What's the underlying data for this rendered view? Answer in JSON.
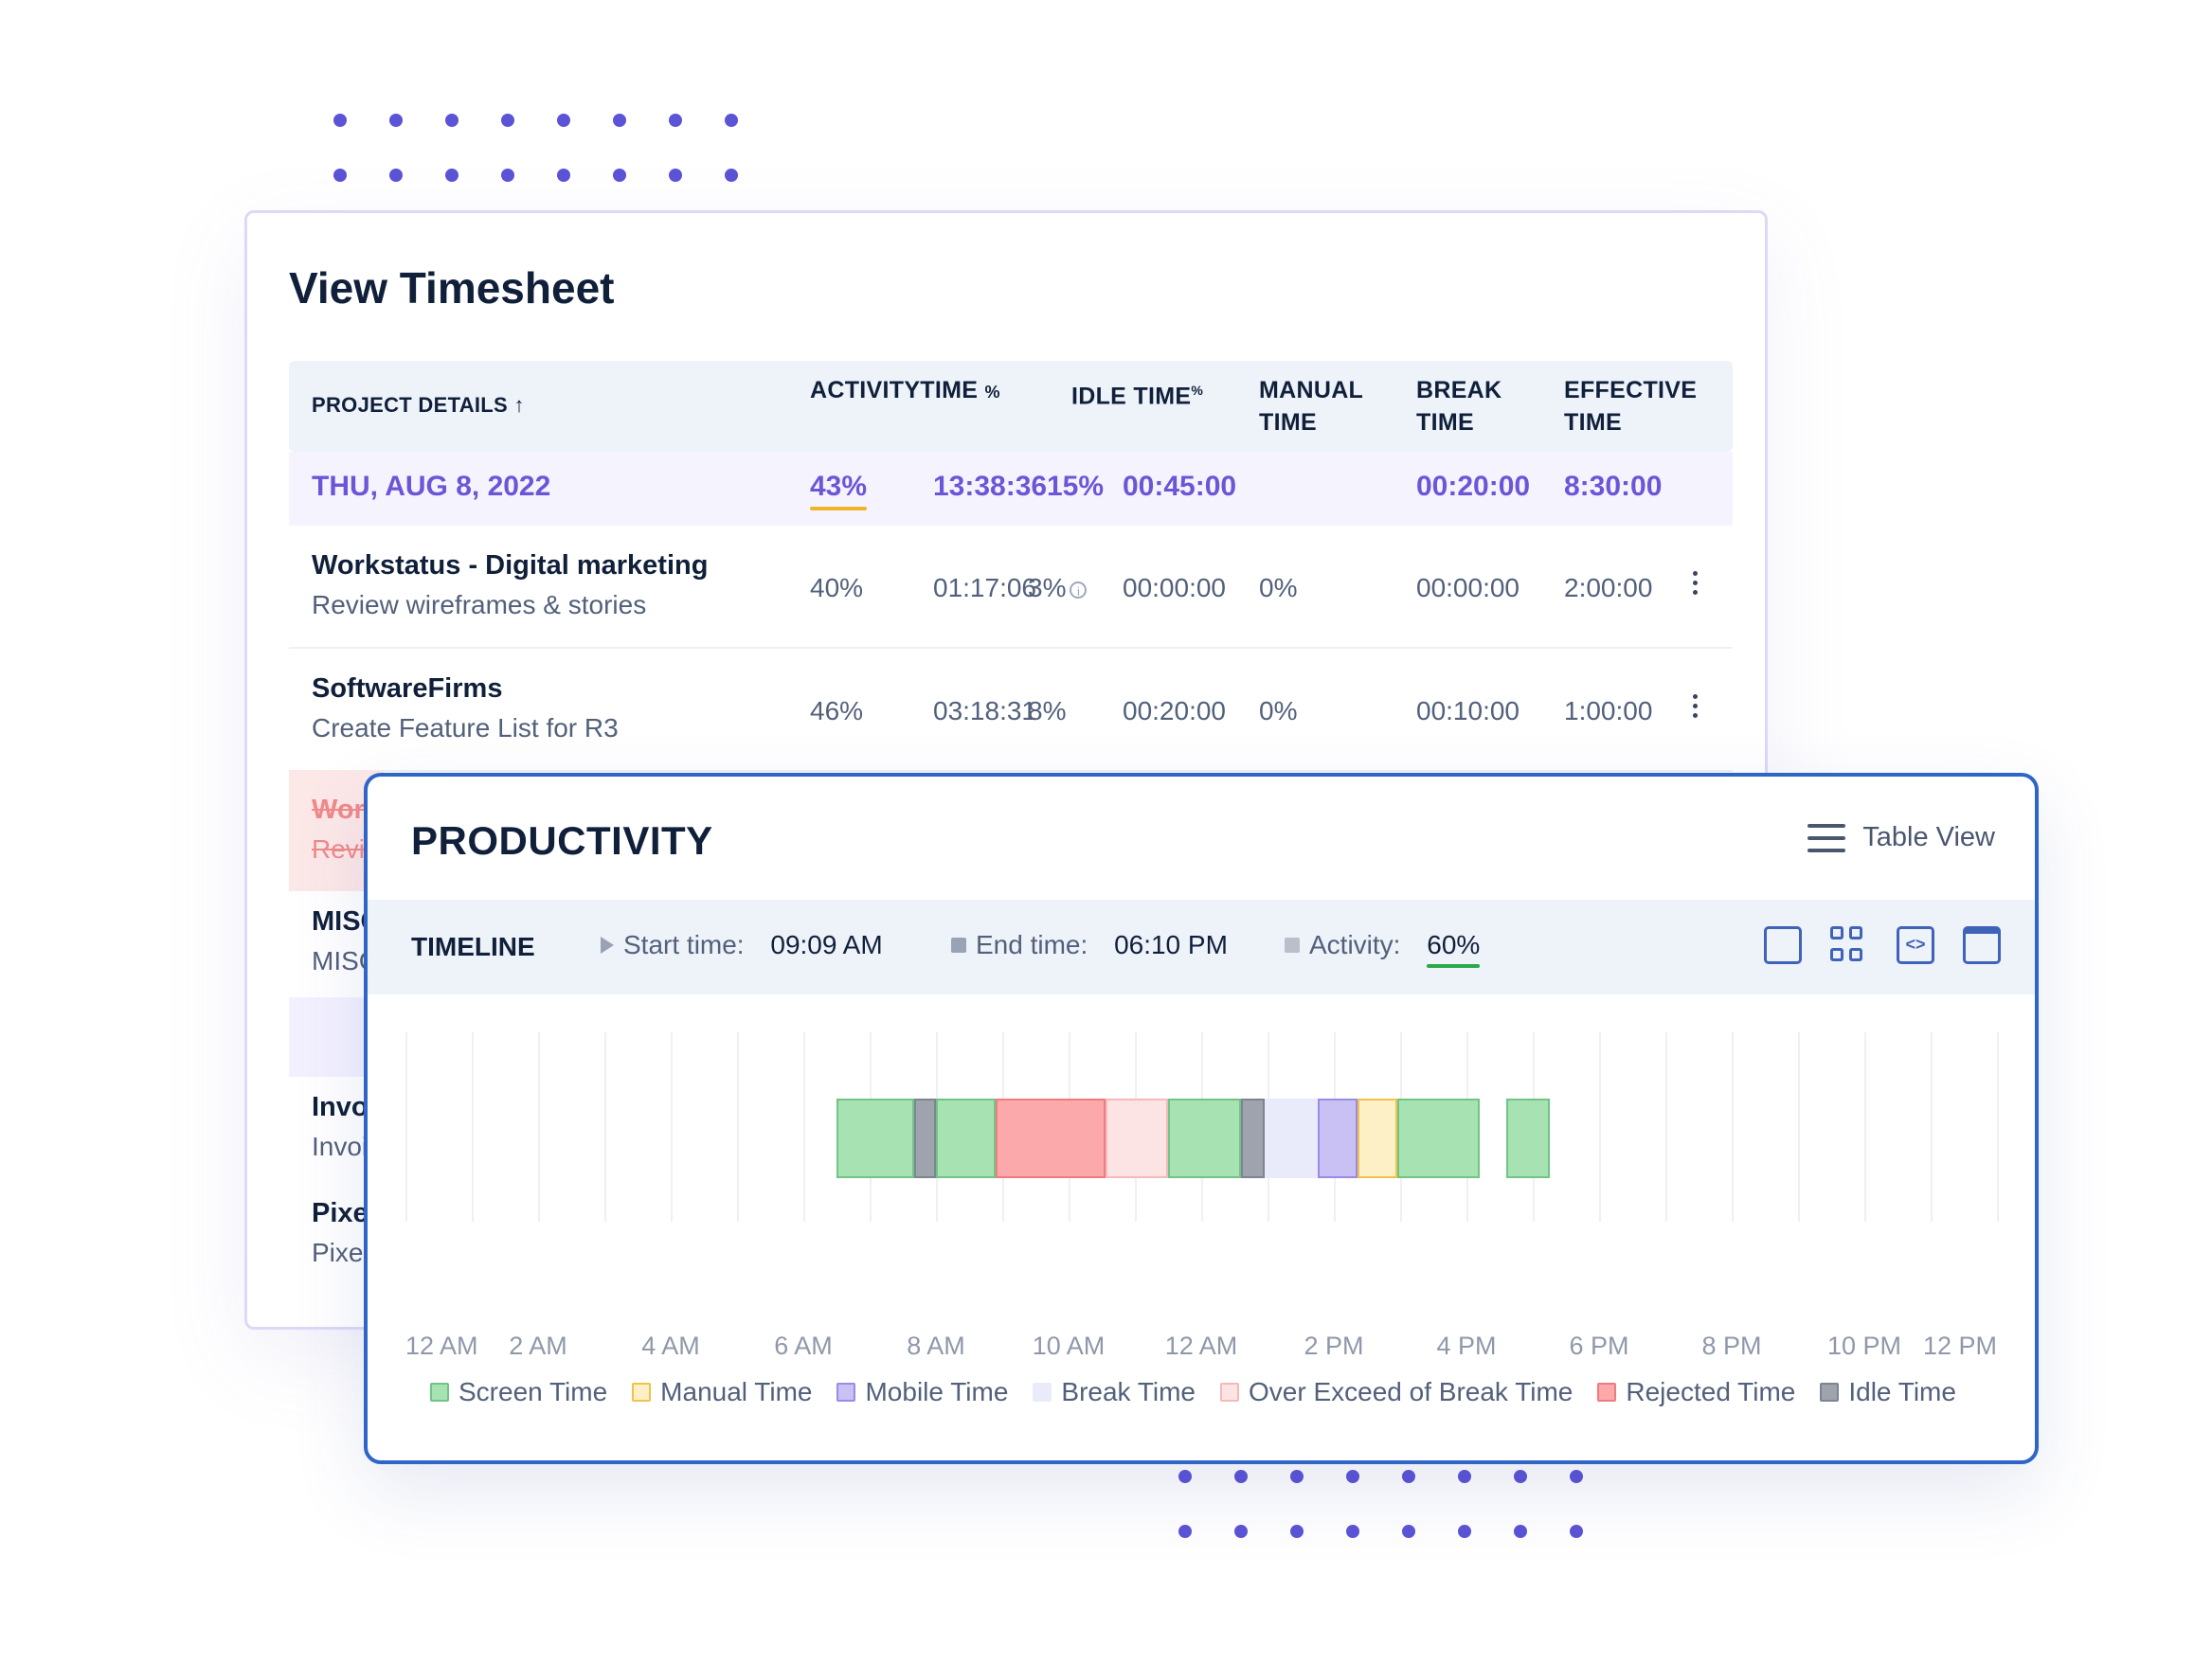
{
  "timesheet": {
    "title": "View Timesheet",
    "headers": {
      "project_details": "PROJECT DETAILS",
      "activity": "ACTIVITY",
      "time": "TIME",
      "idle_time": "IDLE TIME",
      "manual_time_1": "MANUAL",
      "manual_time_2": "TIME",
      "break_time_1": "BREAK",
      "break_time_2": "TIME",
      "effective_time_1": "EFFECTIVE",
      "effective_time_2": "TIME",
      "percent": "%",
      "sort_arrow": "↑"
    },
    "date_row": {
      "date": "THU, AUG 8, 2022",
      "activity": "43%",
      "time": "13:38:36",
      "idle_pct": "15%",
      "idle_time": "00:45:00",
      "break_time": "00:20:00",
      "effective_time": "8:30:00"
    },
    "rows": [
      {
        "project": "Workstatus - Digital marketing",
        "task": "Review wireframes & stories",
        "activity": "40%",
        "time": "01:17:06",
        "idle_pct": "3%",
        "idle_time": "00:00:00",
        "manual": "0%",
        "break_time": "00:00:00",
        "effective": "2:00:00"
      },
      {
        "project": "SoftwareFirms",
        "task": "Create Feature List for R3",
        "activity": "46%",
        "time": "03:18:31",
        "idle_pct": "8%",
        "idle_time": "00:20:00",
        "manual": "0%",
        "break_time": "00:10:00",
        "effective": "1:00:00"
      }
    ],
    "partial_rows": [
      {
        "project": "Wor",
        "task": "Revi"
      },
      {
        "project": "MISC",
        "task": "MISC"
      },
      {
        "project": "Invo",
        "task": "Invoi"
      },
      {
        "project": "Pixel",
        "task": "Pixe"
      }
    ]
  },
  "productivity": {
    "title": "PRODUCTIVITY",
    "table_view": "Table View",
    "timeline_label": "TIMELINE",
    "start_label": "Start time:",
    "start_value": "09:09 AM",
    "end_label": "End time:",
    "end_value": "06:10 PM",
    "activity_label": "Activity:",
    "activity_value": "60%",
    "toolbar_icons": [
      "fullscreen-icon",
      "grid-view-icon",
      "code-view-icon",
      "calendar-icon"
    ]
  },
  "chart_data": {
    "type": "timeline",
    "x_labels": [
      "12 AM",
      "2 AM",
      "4 AM",
      "6 AM",
      "8 AM",
      "10 AM",
      "12 AM",
      "2 PM",
      "4 PM",
      "6 PM",
      "8 PM",
      "10 PM",
      "12 PM"
    ],
    "x_range_hours": [
      0,
      24
    ],
    "segments": [
      {
        "start": 6.5,
        "end": 7.67,
        "category": "Screen Time"
      },
      {
        "start": 7.67,
        "end": 8.0,
        "category": "Idle Time"
      },
      {
        "start": 8.0,
        "end": 8.9,
        "category": "Screen Time"
      },
      {
        "start": 8.9,
        "end": 10.55,
        "category": "Rejected Time"
      },
      {
        "start": 10.55,
        "end": 11.5,
        "category": "Over Exceed of Break Time"
      },
      {
        "start": 11.5,
        "end": 12.6,
        "category": "Screen Time"
      },
      {
        "start": 12.6,
        "end": 12.95,
        "category": "Idle Time"
      },
      {
        "start": 12.95,
        "end": 13.75,
        "category": "Break Time"
      },
      {
        "start": 13.75,
        "end": 14.35,
        "category": "Mobile Time"
      },
      {
        "start": 14.35,
        "end": 14.95,
        "category": "Manual Time"
      },
      {
        "start": 14.95,
        "end": 16.2,
        "category": "Screen Time"
      },
      {
        "start": 16.6,
        "end": 17.25,
        "category": "Screen Time"
      }
    ],
    "legend": [
      {
        "name": "Screen Time",
        "fill": "#a7e2b3",
        "stroke": "#72c486"
      },
      {
        "name": "Manual Time",
        "fill": "#fdf0c6",
        "stroke": "#f0c24a"
      },
      {
        "name": "Mobile Time",
        "fill": "#c9c0f4",
        "stroke": "#9a8be6"
      },
      {
        "name": "Break Time",
        "fill": "#e9ebfb",
        "stroke": "#e9ebfb"
      },
      {
        "name": "Over Exceed of Break Time",
        "fill": "#fde4e4",
        "stroke": "#f5b9b9"
      },
      {
        "name": "Rejected Time",
        "fill": "#fba9ab",
        "stroke": "#f07b7e"
      },
      {
        "name": "Idle Time",
        "fill": "#9ea3ad",
        "stroke": "#7e8490"
      }
    ]
  },
  "colors": {
    "accent_purple": "#6d55d8",
    "card_border_blue": "#2d66c7",
    "dot_color": "#5b54d6",
    "activity_underline_date": "#f0b429",
    "activity_underline_timeline": "#2aa84a"
  }
}
